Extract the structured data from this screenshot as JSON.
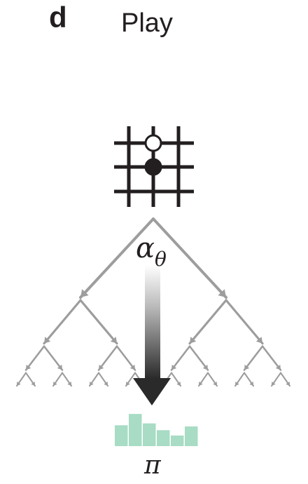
{
  "panel": {
    "letter": "d",
    "title": "Play"
  },
  "labels": {
    "network_symbol": "α",
    "network_subscript": "θ",
    "policy_symbol": "π"
  },
  "board": {
    "stones": [
      {
        "color": "white"
      },
      {
        "color": "black"
      }
    ]
  },
  "colors": {
    "grid": "#231f20",
    "tree": "#9d9d9d",
    "arrow": "#3a3a3a",
    "policy_bars": "#a8dcc4"
  },
  "policy_bars": [
    0.55,
    0.85,
    0.6,
    0.42,
    0.28,
    0.52
  ]
}
